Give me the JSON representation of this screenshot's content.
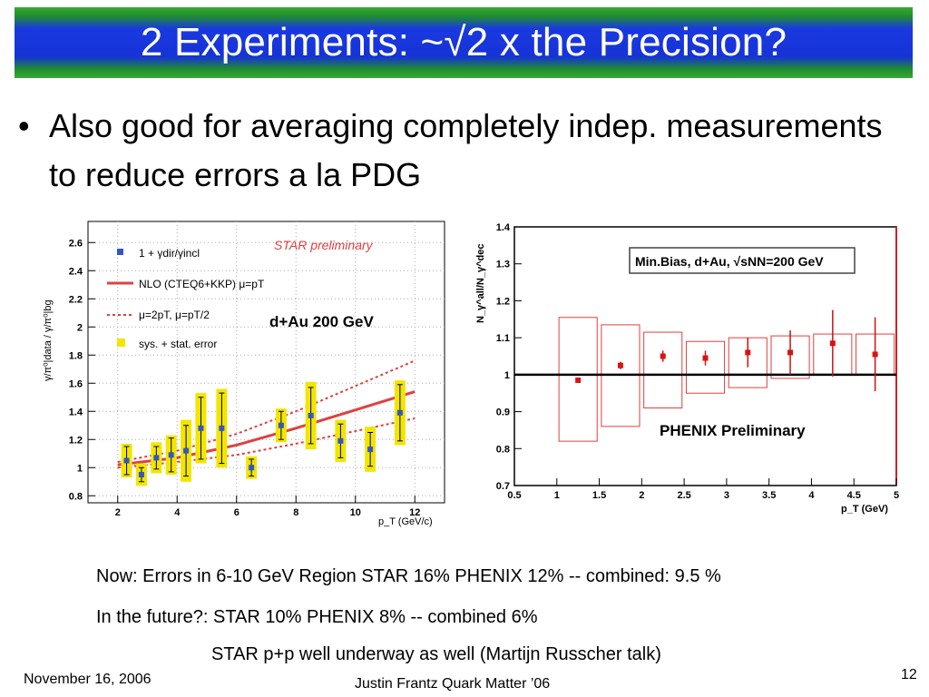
{
  "slide": {
    "title": "2 Experiments: ~√2 x the Precision?",
    "bullet": "Also good for averaging completely indep. measurements to reduce errors a la PDG",
    "notes": [
      "Now: Errors in 6-10 GeV Region STAR 16% PHENIX 12% -- combined:  9.5 %",
      "In the future?:  STAR 10% PHENIX 8% -- combined 6%",
      "STAR p+p well underway as well (Martijn Russcher talk)"
    ],
    "footer": {
      "date": "November 16, 2006",
      "presenter": "Justin Frantz Quark Matter ’06",
      "page_number": "12"
    }
  },
  "chart_data": [
    {
      "type": "scatter",
      "title": "STAR preliminary",
      "annotation": "d+Au 200 GeV",
      "xlabel": "p_T (GeV/c)",
      "ylabel": "γ/π⁰|data / γ/π⁰|bg",
      "xlim": [
        1,
        13
      ],
      "ylim": [
        0.75,
        2.75
      ],
      "xticks": [
        2,
        4,
        6,
        8,
        10,
        12
      ],
      "yticks": [
        0.8,
        1,
        1.2,
        1.4,
        1.6,
        1.8,
        2,
        2.2,
        2.4,
        2.6
      ],
      "grid": true,
      "legend_position": "top-left",
      "legend": [
        {
          "label": "1 + γdir/γincl",
          "marker": "square",
          "color": "#3355cc"
        },
        {
          "label": "NLO (CTEQ6+KKP) μ=pT",
          "marker": "solid-line",
          "color": "#e04040"
        },
        {
          "label": "μ=2pT, μ=pT/2",
          "marker": "dotted-line",
          "color": "#e04040"
        },
        {
          "label": "sys. + stat. error",
          "marker": "box",
          "color": "#f2e600"
        }
      ],
      "points": [
        {
          "x": 2.3,
          "y": 1.05,
          "err": 0.1,
          "sys": 0.12
        },
        {
          "x": 2.8,
          "y": 0.95,
          "err": 0.05,
          "sys": 0.08
        },
        {
          "x": 3.3,
          "y": 1.07,
          "err": 0.08,
          "sys": 0.11
        },
        {
          "x": 3.8,
          "y": 1.09,
          "err": 0.12,
          "sys": 0.14
        },
        {
          "x": 4.3,
          "y": 1.12,
          "err": 0.18,
          "sys": 0.22
        },
        {
          "x": 4.8,
          "y": 1.28,
          "err": 0.22,
          "sys": 0.25
        },
        {
          "x": 5.5,
          "y": 1.28,
          "err": 0.25,
          "sys": 0.28
        },
        {
          "x": 6.5,
          "y": 1.0,
          "err": 0.06,
          "sys": 0.08
        },
        {
          "x": 7.5,
          "y": 1.3,
          "err": 0.1,
          "sys": 0.12
        },
        {
          "x": 8.5,
          "y": 1.37,
          "err": 0.2,
          "sys": 0.24
        },
        {
          "x": 9.5,
          "y": 1.19,
          "err": 0.12,
          "sys": 0.15
        },
        {
          "x": 10.5,
          "y": 1.13,
          "err": 0.12,
          "sys": 0.16
        },
        {
          "x": 11.5,
          "y": 1.39,
          "err": 0.2,
          "sys": 0.23
        }
      ],
      "curves": {
        "nlo": [
          [
            2,
            1.02
          ],
          [
            4,
            1.07
          ],
          [
            6,
            1.16
          ],
          [
            8,
            1.28
          ],
          [
            10,
            1.41
          ],
          [
            12,
            1.54
          ]
        ],
        "upper": [
          [
            2,
            1.04
          ],
          [
            4,
            1.12
          ],
          [
            6,
            1.24
          ],
          [
            8,
            1.4
          ],
          [
            10,
            1.58
          ],
          [
            12,
            1.76
          ]
        ],
        "lower": [
          [
            2,
            1.0
          ],
          [
            4,
            1.04
          ],
          [
            6,
            1.09
          ],
          [
            8,
            1.17
          ],
          [
            10,
            1.26
          ],
          [
            12,
            1.35
          ]
        ]
      }
    },
    {
      "type": "scatter",
      "title": "PHENIX Preliminary",
      "annotation": "Min.Bias, d+Au, √sNN=200 GeV",
      "xlabel": "p_T (GeV)",
      "ylabel": "N_γ^all/N_γ^dec",
      "xlim": [
        0.5,
        5
      ],
      "ylim": [
        0.7,
        1.4
      ],
      "xticks": [
        0.5,
        1,
        1.5,
        2,
        2.5,
        3,
        3.5,
        4,
        4.5,
        5
      ],
      "yticks": [
        0.7,
        0.8,
        0.9,
        1,
        1.1,
        1.2,
        1.3,
        1.4
      ],
      "reference_line": 1,
      "points": [
        {
          "x": 1.25,
          "y": 0.985,
          "err": 0.0,
          "syslo": 0.82,
          "syshi": 1.155,
          "bw": 0.45
        },
        {
          "x": 1.75,
          "y": 1.025,
          "err": 0.01,
          "syslo": 0.86,
          "syshi": 1.135,
          "bw": 0.45
        },
        {
          "x": 2.25,
          "y": 1.05,
          "err": 0.015,
          "syslo": 0.91,
          "syshi": 1.115,
          "bw": 0.45
        },
        {
          "x": 2.75,
          "y": 1.045,
          "err": 0.02,
          "syslo": 0.95,
          "syshi": 1.09,
          "bw": 0.45
        },
        {
          "x": 3.25,
          "y": 1.06,
          "err": 0.04,
          "syslo": 0.965,
          "syshi": 1.1,
          "bw": 0.45
        },
        {
          "x": 3.75,
          "y": 1.06,
          "err": 0.06,
          "syslo": 0.99,
          "syshi": 1.105,
          "bw": 0.45
        },
        {
          "x": 4.25,
          "y": 1.085,
          "err": 0.09,
          "syslo": 1.0,
          "syshi": 1.11,
          "bw": 0.45
        },
        {
          "x": 4.75,
          "y": 1.055,
          "err": 0.1,
          "syslo": 1.0,
          "syshi": 1.11,
          "bw": 0.45
        }
      ]
    }
  ]
}
